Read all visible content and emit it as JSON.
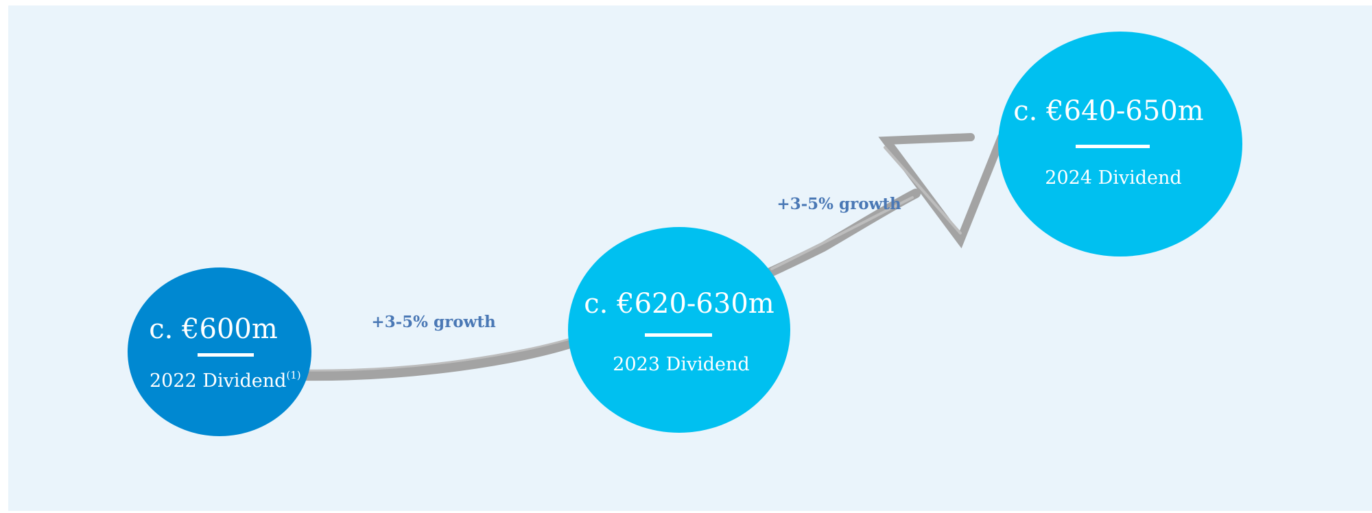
{
  "nodes": [
    {
      "value": "c. €600m",
      "label": "2022 Dividend",
      "note": "(1)"
    },
    {
      "value": "c. €620-630m",
      "label": "2023 Dividend"
    },
    {
      "value": "c. €640-650m",
      "label": "2024 Dividend"
    }
  ],
  "growth_labels": [
    "+3-5% growth",
    "+3-5% growth"
  ]
}
